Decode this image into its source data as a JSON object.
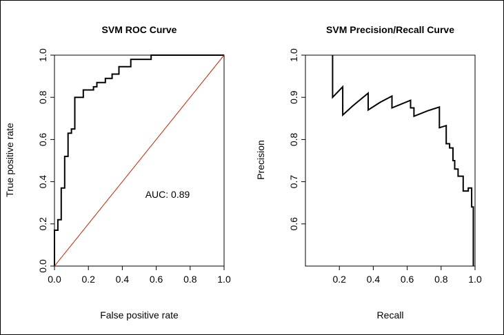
{
  "colors": {
    "curve": "#000000",
    "diagonal": "#cc2200",
    "background": "#ffffff"
  },
  "chart_data": [
    {
      "type": "line",
      "title": "SVM ROC Curve",
      "xlabel": "False positive rate",
      "ylabel": "True positive rate",
      "xlim": [
        0,
        1
      ],
      "ylim": [
        0,
        1
      ],
      "xticks": [
        "0.0",
        "0.2",
        "0.4",
        "0.6",
        "0.8",
        "1.0"
      ],
      "yticks": [
        "0.0",
        "0.2",
        "0.4",
        "0.6",
        "0.8",
        "1.0"
      ],
      "annotation": "AUC: 0.89",
      "series": [
        {
          "style": "step",
          "points": [
            [
              0.0,
              0.0
            ],
            [
              0.0,
              0.17
            ],
            [
              0.02,
              0.17
            ],
            [
              0.02,
              0.22
            ],
            [
              0.04,
              0.22
            ],
            [
              0.04,
              0.37
            ],
            [
              0.06,
              0.37
            ],
            [
              0.06,
              0.52
            ],
            [
              0.08,
              0.52
            ],
            [
              0.08,
              0.63
            ],
            [
              0.1,
              0.63
            ],
            [
              0.1,
              0.65
            ],
            [
              0.12,
              0.65
            ],
            [
              0.12,
              0.8
            ],
            [
              0.17,
              0.8
            ],
            [
              0.17,
              0.835
            ],
            [
              0.23,
              0.835
            ],
            [
              0.23,
              0.85
            ],
            [
              0.25,
              0.85
            ],
            [
              0.25,
              0.87
            ],
            [
              0.3,
              0.87
            ],
            [
              0.3,
              0.89
            ],
            [
              0.34,
              0.89
            ],
            [
              0.34,
              0.91
            ],
            [
              0.38,
              0.91
            ],
            [
              0.38,
              0.945
            ],
            [
              0.45,
              0.945
            ],
            [
              0.45,
              0.98
            ],
            [
              0.57,
              0.98
            ],
            [
              0.57,
              1.0
            ],
            [
              1.0,
              1.0
            ]
          ]
        },
        {
          "style": "diagonal",
          "points": [
            [
              0,
              0
            ],
            [
              1,
              1
            ]
          ]
        }
      ]
    },
    {
      "type": "line",
      "title": "SVM Precision/Recall Curve",
      "xlabel": "Recall",
      "ylabel": "Precision",
      "xlim": [
        0,
        1
      ],
      "ylim": [
        0.5,
        1
      ],
      "xticks": [
        "0.2",
        "0.4",
        "0.6",
        "0.8",
        "1.0"
      ],
      "yticks": [
        "0.6",
        "0.7",
        "0.8",
        "0.9",
        "1.0"
      ],
      "series": [
        {
          "style": "line",
          "points": [
            [
              0.16,
              1.0
            ],
            [
              0.16,
              0.9
            ],
            [
              0.22,
              0.925
            ],
            [
              0.22,
              0.858
            ],
            [
              0.28,
              0.88
            ],
            [
              0.37,
              0.91
            ],
            [
              0.37,
              0.87
            ],
            [
              0.44,
              0.888
            ],
            [
              0.51,
              0.903
            ],
            [
              0.51,
              0.875
            ],
            [
              0.62,
              0.893
            ],
            [
              0.62,
              0.875
            ],
            [
              0.64,
              0.875
            ],
            [
              0.64,
              0.855
            ],
            [
              0.72,
              0.868
            ],
            [
              0.79,
              0.877
            ],
            [
              0.79,
              0.828
            ],
            [
              0.83,
              0.833
            ],
            [
              0.83,
              0.79
            ],
            [
              0.85,
              0.79
            ],
            [
              0.85,
              0.78
            ],
            [
              0.87,
              0.78
            ],
            [
              0.87,
              0.75
            ],
            [
              0.88,
              0.75
            ],
            [
              0.88,
              0.73
            ],
            [
              0.9,
              0.73
            ],
            [
              0.9,
              0.713
            ],
            [
              0.93,
              0.713
            ],
            [
              0.93,
              0.678
            ],
            [
              0.96,
              0.678
            ],
            [
              0.96,
              0.685
            ],
            [
              0.98,
              0.685
            ],
            [
              0.98,
              0.64
            ],
            [
              0.99,
              0.64
            ],
            [
              0.99,
              0.5
            ]
          ]
        }
      ]
    }
  ]
}
